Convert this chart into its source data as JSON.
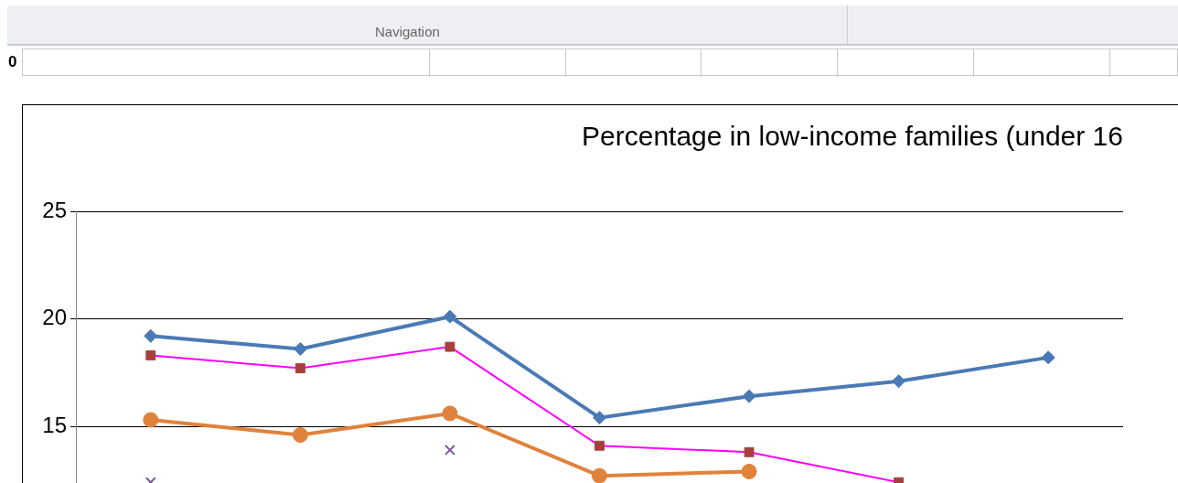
{
  "chart_data": {
    "type": "line",
    "title": "Percentage in low-income families (under 16",
    "annotations": [
      "Navigation",
      "0"
    ],
    "categories": [
      null,
      null,
      null,
      null,
      null,
      null,
      null
    ],
    "series": [
      {
        "color": "#4a7ab5",
        "marker": "diamond",
        "values": [
          19.2,
          18.6,
          20.1,
          15.4,
          16.4,
          17.1,
          18.2
        ]
      },
      {
        "color": "#ff00ff",
        "colors": [
          "#a5403c",
          "#a5403c",
          "#a5403c",
          "#a5403c",
          "#a5403c",
          "#a5403c",
          "#a5403c"
        ],
        "marker": "square",
        "values": [
          18.3,
          17.7,
          18.7,
          14.1,
          13.8,
          12.4,
          null
        ]
      },
      {
        "color": "#e0823c",
        "marker": "circle",
        "values": [
          15.3,
          14.6,
          15.6,
          12.7,
          12.9,
          null,
          null
        ]
      },
      {
        "color": "#7a5a9a",
        "marker": "cross",
        "values": [
          12.4,
          null,
          13.9,
          null,
          null,
          null,
          null
        ]
      }
    ],
    "ylim": [
      12,
      25
    ],
    "yticks": [
      15,
      20,
      25
    ],
    "grid": "y",
    "tick_labels": "y"
  }
}
